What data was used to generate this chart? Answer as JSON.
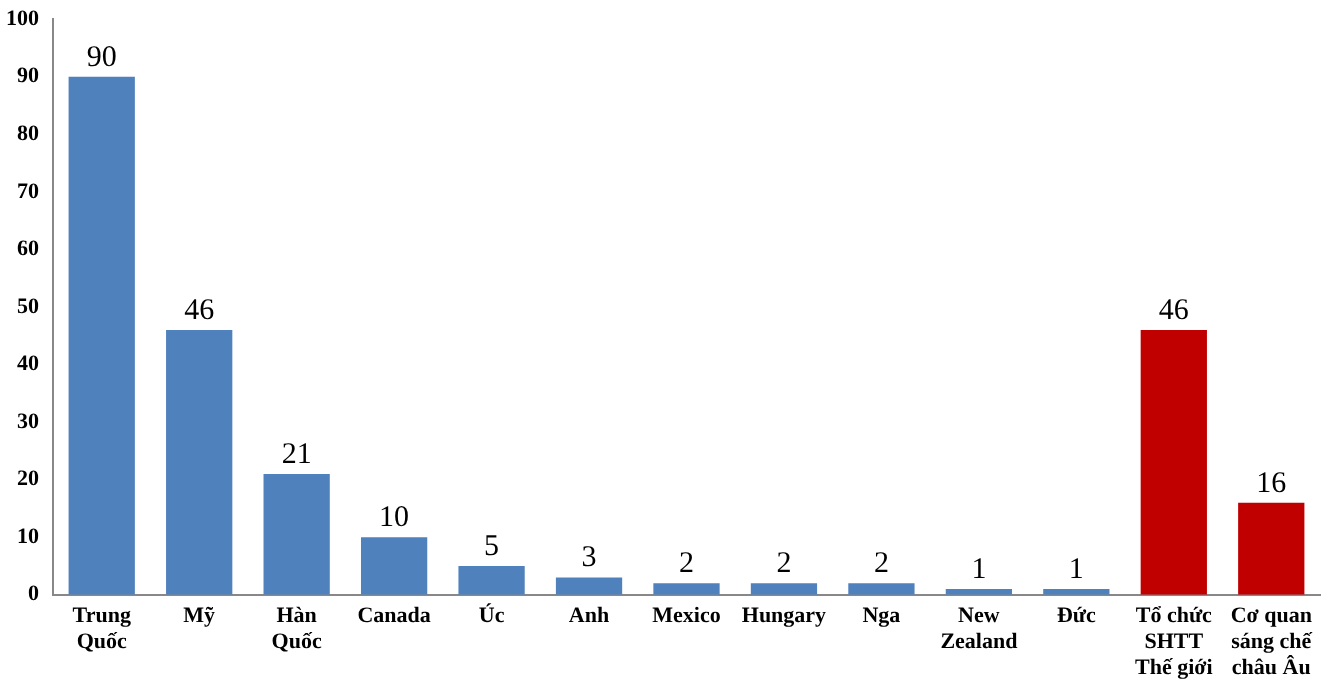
{
  "chart_data": {
    "type": "bar",
    "categories": [
      "Trung Quốc",
      "Mỹ",
      "Hàn Quốc",
      "Canada",
      "Úc",
      "Anh",
      "Mexico",
      "Hungary",
      "Nga",
      "New Zealand",
      "Đức",
      "Tổ chức SHTT Thế giới",
      "Cơ quan sáng chế châu Âu"
    ],
    "values": [
      90,
      46,
      21,
      10,
      5,
      3,
      2,
      2,
      2,
      1,
      1,
      46,
      16
    ],
    "colors": [
      "#4f81bd",
      "#4f81bd",
      "#4f81bd",
      "#4f81bd",
      "#4f81bd",
      "#4f81bd",
      "#4f81bd",
      "#4f81bd",
      "#4f81bd",
      "#4f81bd",
      "#4f81bd",
      "#c00000",
      "#c00000"
    ],
    "ylim": [
      0,
      100
    ],
    "yticks": [
      0,
      10,
      20,
      30,
      40,
      50,
      60,
      70,
      80,
      90,
      100
    ],
    "grid": false,
    "legend": false,
    "data_labels": true
  }
}
